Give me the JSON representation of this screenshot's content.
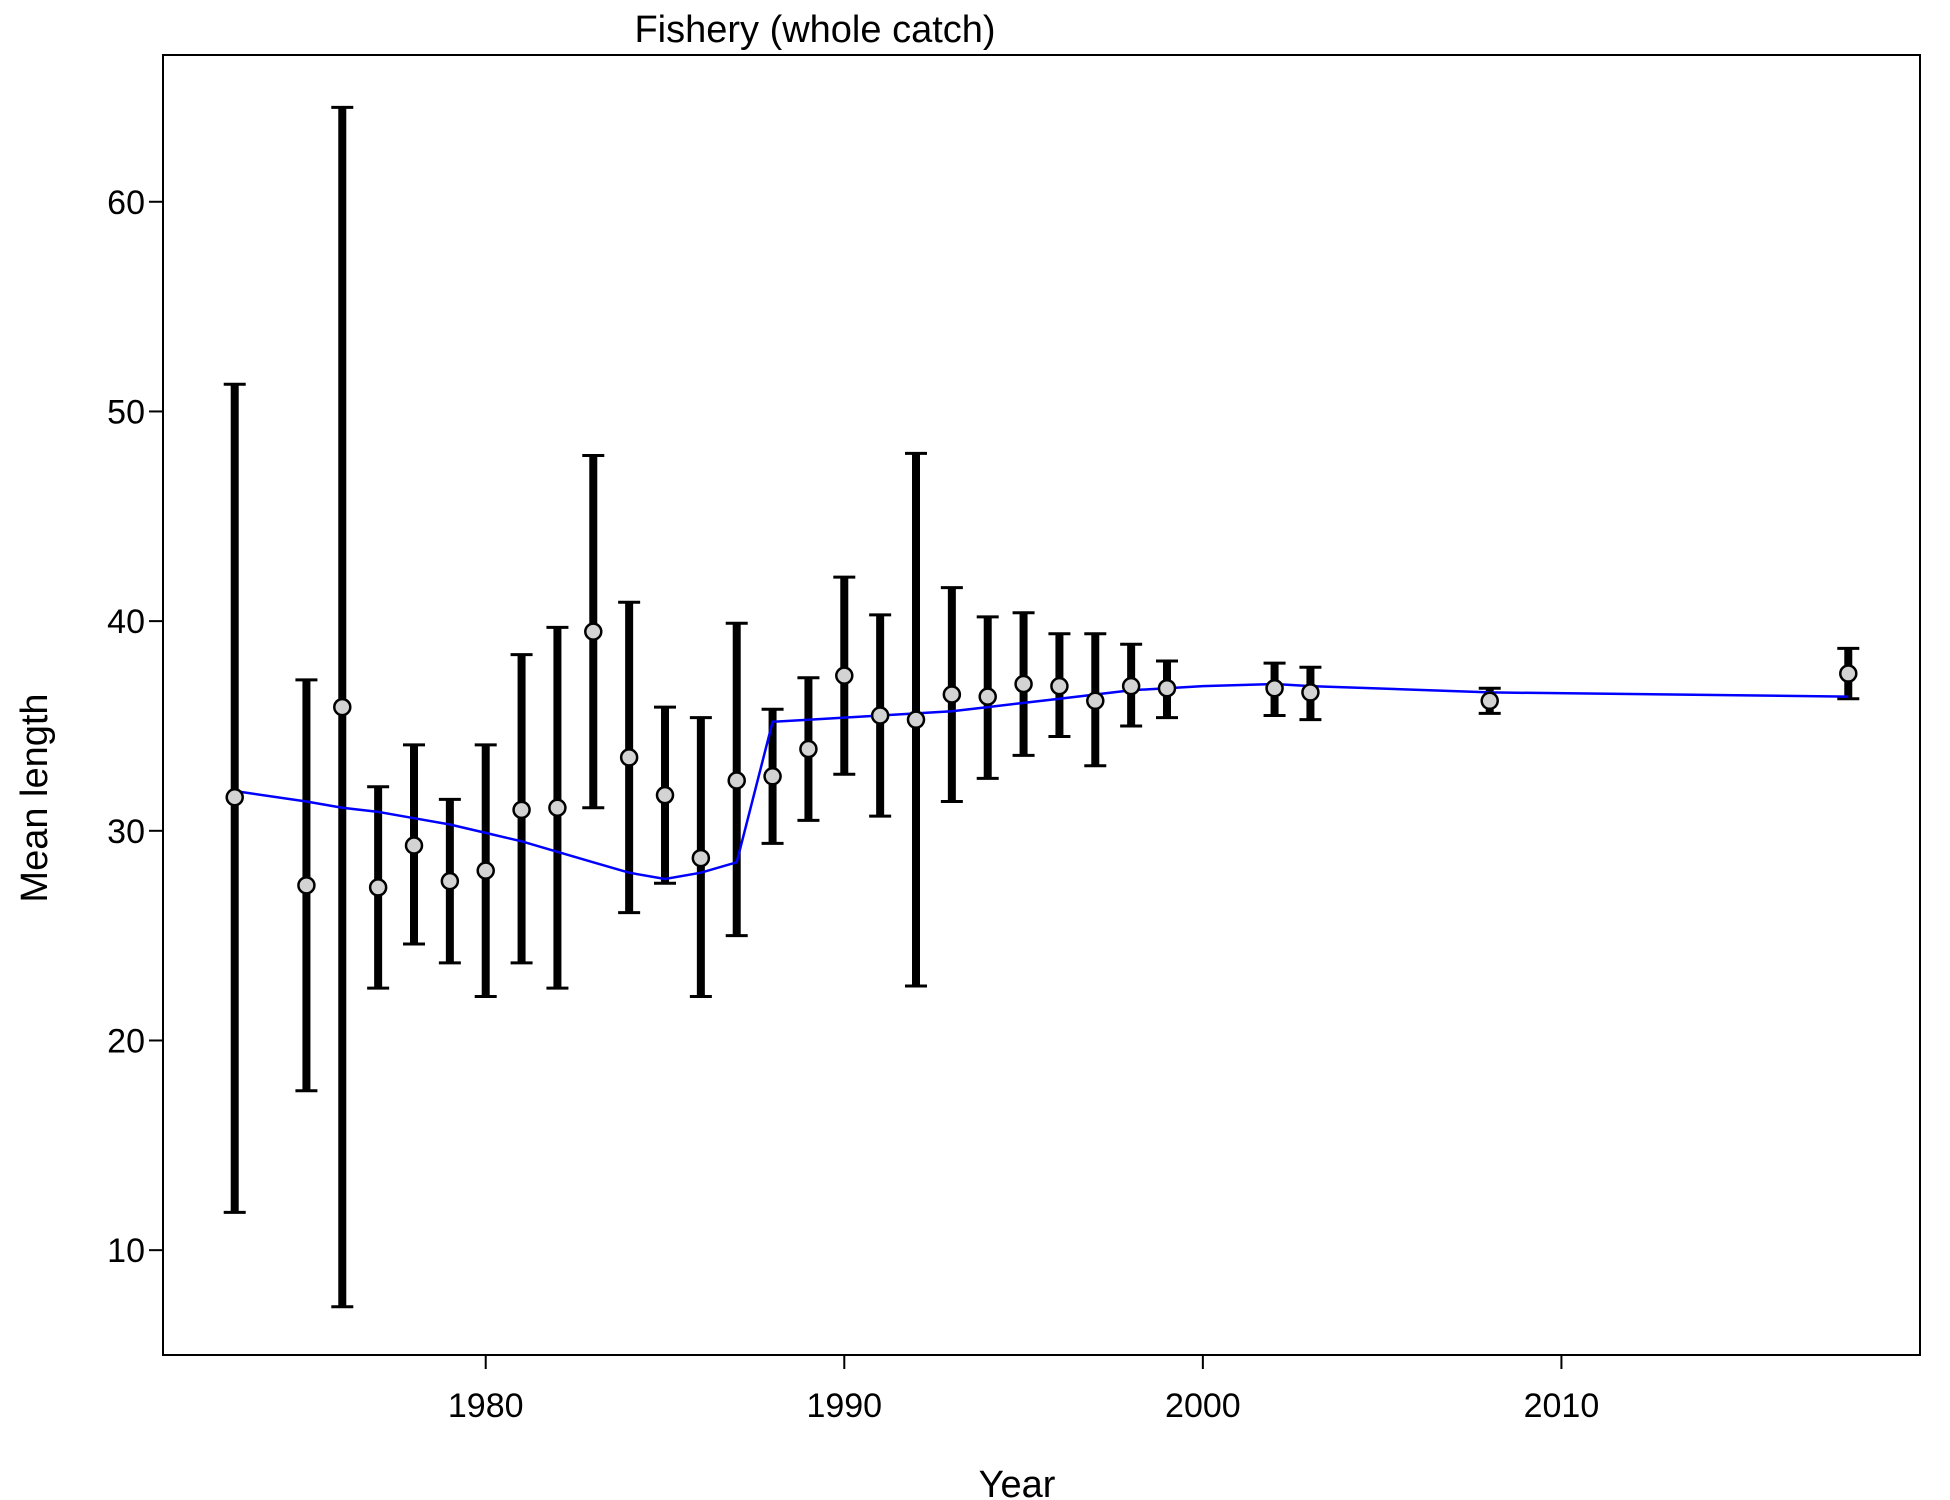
{
  "chart_data": {
    "type": "scatter",
    "title": "Fishery (whole catch)",
    "xlabel": "Year",
    "ylabel": "Mean length",
    "xlim": [
      1971,
      2020
    ],
    "ylim": [
      5,
      67
    ],
    "x_ticks": [
      1980,
      1990,
      2000,
      2010
    ],
    "y_ticks": [
      10,
      20,
      30,
      40,
      50,
      60
    ],
    "grid": false,
    "legend": "none",
    "colors": {
      "expected_line": "#0000ff",
      "points": "#d3d3d3",
      "error_bars": "#000000"
    },
    "observed": [
      {
        "x": 1973,
        "y": 31.6,
        "lo": 11.8,
        "hi": 51.3
      },
      {
        "x": 1975,
        "y": 27.4,
        "lo": 17.6,
        "hi": 37.2
      },
      {
        "x": 1976,
        "y": 35.9,
        "lo": 7.3,
        "hi": 64.5
      },
      {
        "x": 1977,
        "y": 27.3,
        "lo": 22.5,
        "hi": 32.1
      },
      {
        "x": 1978,
        "y": 29.3,
        "lo": 24.6,
        "hi": 34.1
      },
      {
        "x": 1979,
        "y": 27.6,
        "lo": 23.7,
        "hi": 31.5
      },
      {
        "x": 1980,
        "y": 28.1,
        "lo": 22.1,
        "hi": 34.1
      },
      {
        "x": 1981,
        "y": 31.0,
        "lo": 23.7,
        "hi": 38.4
      },
      {
        "x": 1982,
        "y": 31.1,
        "lo": 22.5,
        "hi": 39.7
      },
      {
        "x": 1983,
        "y": 39.5,
        "lo": 31.1,
        "hi": 47.9
      },
      {
        "x": 1984,
        "y": 33.5,
        "lo": 26.1,
        "hi": 40.9
      },
      {
        "x": 1985,
        "y": 31.7,
        "lo": 27.5,
        "hi": 35.9
      },
      {
        "x": 1986,
        "y": 28.7,
        "lo": 22.1,
        "hi": 35.4
      },
      {
        "x": 1987,
        "y": 32.4,
        "lo": 25.0,
        "hi": 39.9
      },
      {
        "x": 1988,
        "y": 32.6,
        "lo": 29.4,
        "hi": 35.8
      },
      {
        "x": 1989,
        "y": 33.9,
        "lo": 30.5,
        "hi": 37.3
      },
      {
        "x": 1990,
        "y": 37.4,
        "lo": 32.7,
        "hi": 42.1
      },
      {
        "x": 1991,
        "y": 35.5,
        "lo": 30.7,
        "hi": 40.3
      },
      {
        "x": 1992,
        "y": 35.3,
        "lo": 22.6,
        "hi": 48.0
      },
      {
        "x": 1993,
        "y": 36.5,
        "lo": 31.4,
        "hi": 41.6
      },
      {
        "x": 1994,
        "y": 36.4,
        "lo": 32.5,
        "hi": 40.2
      },
      {
        "x": 1995,
        "y": 37.0,
        "lo": 33.6,
        "hi": 40.4
      },
      {
        "x": 1996,
        "y": 36.9,
        "lo": 34.5,
        "hi": 39.4
      },
      {
        "x": 1997,
        "y": 36.2,
        "lo": 33.1,
        "hi": 39.4
      },
      {
        "x": 1998,
        "y": 36.9,
        "lo": 35.0,
        "hi": 38.9
      },
      {
        "x": 1999,
        "y": 36.8,
        "lo": 35.4,
        "hi": 38.1
      },
      {
        "x": 2002,
        "y": 36.8,
        "lo": 35.5,
        "hi": 38.0
      },
      {
        "x": 2003,
        "y": 36.6,
        "lo": 35.3,
        "hi": 37.8
      },
      {
        "x": 2008,
        "y": 36.2,
        "lo": 35.6,
        "hi": 36.8
      },
      {
        "x": 2018,
        "y": 37.5,
        "lo": 36.3,
        "hi": 38.7
      }
    ],
    "expected": [
      {
        "x": 1973,
        "y": 31.9
      },
      {
        "x": 1975,
        "y": 31.4
      },
      {
        "x": 1976,
        "y": 31.1
      },
      {
        "x": 1977,
        "y": 30.9
      },
      {
        "x": 1978,
        "y": 30.6
      },
      {
        "x": 1979,
        "y": 30.3
      },
      {
        "x": 1980,
        "y": 29.9
      },
      {
        "x": 1981,
        "y": 29.5
      },
      {
        "x": 1982,
        "y": 29.0
      },
      {
        "x": 1983,
        "y": 28.5
      },
      {
        "x": 1984,
        "y": 28.0
      },
      {
        "x": 1985,
        "y": 27.7
      },
      {
        "x": 1986,
        "y": 28.0
      },
      {
        "x": 1987,
        "y": 28.5
      },
      {
        "x": 1988,
        "y": 35.2
      },
      {
        "x": 1989,
        "y": 35.3
      },
      {
        "x": 1990,
        "y": 35.4
      },
      {
        "x": 1991,
        "y": 35.5
      },
      {
        "x": 1992,
        "y": 35.6
      },
      {
        "x": 1993,
        "y": 35.7
      },
      {
        "x": 1994,
        "y": 35.9
      },
      {
        "x": 1995,
        "y": 36.1
      },
      {
        "x": 1996,
        "y": 36.3
      },
      {
        "x": 1997,
        "y": 36.5
      },
      {
        "x": 1998,
        "y": 36.7
      },
      {
        "x": 1999,
        "y": 36.8
      },
      {
        "x": 2000,
        "y": 36.9
      },
      {
        "x": 2002,
        "y": 37.0
      },
      {
        "x": 2003,
        "y": 36.9
      },
      {
        "x": 2008,
        "y": 36.6
      },
      {
        "x": 2018,
        "y": 36.4
      }
    ]
  }
}
